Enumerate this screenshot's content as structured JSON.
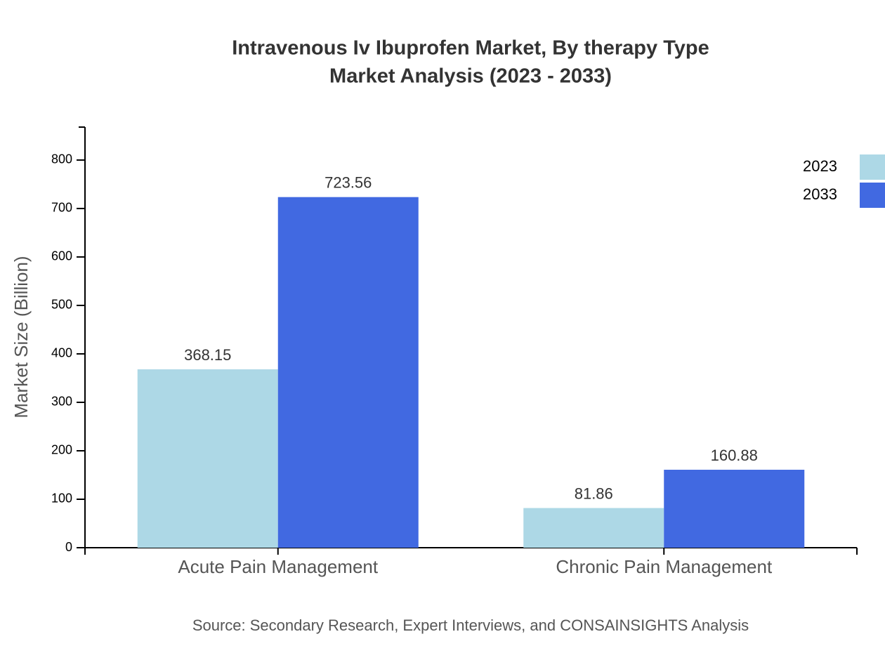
{
  "chart_data": {
    "type": "bar",
    "title": "Intravenous Iv Ibuprofen Market, By therapy Type",
    "subtitle": "Market Analysis (2023 - 2033)",
    "y_label": "Market Size (Billion)",
    "source": "Source: Secondary Research, Expert Interviews, and CONSAINSIGHTS Analysis",
    "categories": [
      "Acute Pain Management",
      "Chronic Pain Management"
    ],
    "series": [
      {
        "name": "2023",
        "color": "#add8e6",
        "values": [
          368.15,
          81.86
        ]
      },
      {
        "name": "2033",
        "color": "#4169e1",
        "values": [
          723.56,
          160.88
        ]
      }
    ],
    "ylim": [
      0,
      868
    ],
    "yticks": [
      0,
      100,
      200,
      300,
      400,
      500,
      600,
      700,
      800
    ],
    "legend": "top-right"
  }
}
